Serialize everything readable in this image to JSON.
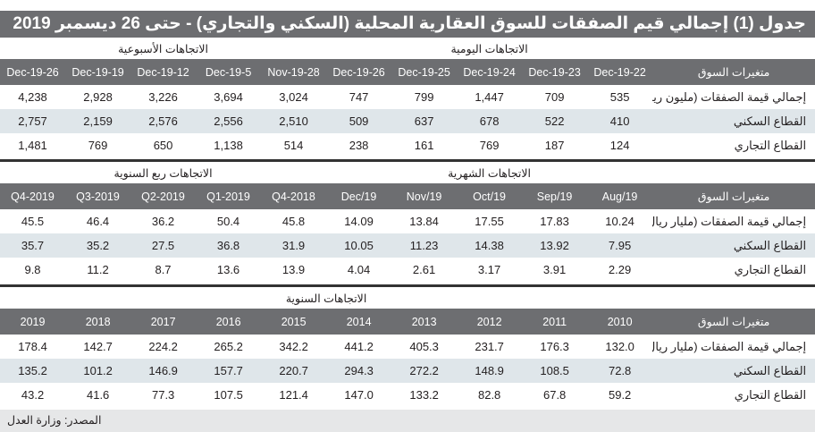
{
  "title": "جدول (1) إجمالي قيم الصفقات للسوق العقارية المحلية (السكني والتجاري) - حتى 26 ديسمبر 2019",
  "row_label_header": "متغيرات السوق",
  "sections": [
    {
      "groups": [
        "الاتجاهات اليومية",
        "الاتجاهات الأسبوعية"
      ],
      "columns": [
        "22-Dec-19",
        "23-Dec-19",
        "24-Dec-19",
        "25-Dec-19",
        "26-Dec-19",
        "28-Nov-19",
        "5-Dec-19",
        "12-Dec-19",
        "19-Dec-19",
        "26-Dec-19"
      ],
      "rows": [
        {
          "label": "إجمالي قيمة الصفقات (مليون ريال)",
          "values": [
            "535",
            "709",
            "1,447",
            "799",
            "747",
            "3,024",
            "3,694",
            "3,226",
            "2,928",
            "4,238"
          ]
        },
        {
          "label": "القطاع السكني",
          "values": [
            "410",
            "522",
            "678",
            "637",
            "509",
            "2,510",
            "2,556",
            "2,576",
            "2,159",
            "2,757"
          ]
        },
        {
          "label": "القطاع التجاري",
          "values": [
            "124",
            "187",
            "769",
            "161",
            "238",
            "514",
            "1,138",
            "650",
            "769",
            "1,481"
          ]
        }
      ]
    },
    {
      "groups": [
        "الاتجاهات الشهرية",
        "الاتجاهات ربع السنوية"
      ],
      "columns": [
        "Aug/19",
        "Sep/19",
        "Oct/19",
        "Nov/19",
        "Dec/19",
        "2018-Q4",
        "2019-Q1",
        "2019-Q2",
        "2019-Q3",
        "2019-Q4"
      ],
      "rows": [
        {
          "label": "إجمالي قيمة الصفقات (مليار ريال)",
          "values": [
            "10.24",
            "17.83",
            "17.55",
            "13.84",
            "14.09",
            "45.8",
            "50.4",
            "36.2",
            "46.4",
            "45.5"
          ]
        },
        {
          "label": "القطاع السكني",
          "values": [
            "7.95",
            "13.92",
            "14.38",
            "11.23",
            "10.05",
            "31.9",
            "36.8",
            "27.5",
            "35.2",
            "35.7"
          ]
        },
        {
          "label": "القطاع التجاري",
          "values": [
            "2.29",
            "3.91",
            "3.17",
            "2.61",
            "4.04",
            "13.9",
            "13.6",
            "8.7",
            "11.2",
            "9.8"
          ]
        }
      ]
    },
    {
      "groups": [
        "الاتجاهات السنوية"
      ],
      "columns": [
        "2010",
        "2011",
        "2012",
        "2013",
        "2014",
        "2015",
        "2016",
        "2017",
        "2018",
        "2019"
      ],
      "rows": [
        {
          "label": "إجمالي قيمة الصفقات (مليار ريال)",
          "values": [
            "132.0",
            "176.3",
            "231.7",
            "405.3",
            "441.2",
            "342.2",
            "265.2",
            "224.2",
            "142.7",
            "178.4"
          ]
        },
        {
          "label": "القطاع السكني",
          "values": [
            "72.8",
            "108.5",
            "148.9",
            "272.2",
            "294.3",
            "220.7",
            "157.7",
            "146.9",
            "101.2",
            "135.2"
          ]
        },
        {
          "label": "القطاع التجاري",
          "values": [
            "59.2",
            "67.8",
            "82.8",
            "133.2",
            "147.0",
            "121.4",
            "107.5",
            "77.3",
            "41.6",
            "43.2"
          ]
        }
      ]
    }
  ],
  "source": "المصدر: وزارة العدل",
  "colors": {
    "header_bg": "#6d6e71",
    "alt_row_bg": "#dfe6ea",
    "source_bg": "#e6e7e8"
  }
}
